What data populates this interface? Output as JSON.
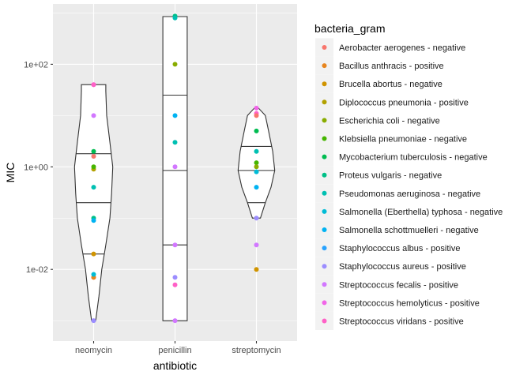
{
  "chart_data": {
    "type": "violin",
    "xlabel": "antibiotic",
    "ylabel": "MIC",
    "yscale": "log10",
    "ylim": [
      0.0004,
      1500
    ],
    "categories": [
      "neomycin",
      "penicillin",
      "streptomycin"
    ],
    "ytick_values": [
      0.01,
      1,
      100
    ],
    "ytick_labels": [
      "1e-02",
      "1e+00",
      "1e+02"
    ],
    "legend": {
      "title": "bacteria_gram",
      "position": "right",
      "entries": [
        {
          "label": "Aerobacter aerogenes - negative",
          "color": "#F8766D"
        },
        {
          "label": "Bacillus anthracis - positive",
          "color": "#E7851E"
        },
        {
          "label": "Brucella abortus - negative",
          "color": "#D09400"
        },
        {
          "label": "Diplococcus pneumonia - positive",
          "color": "#B2A100"
        },
        {
          "label": "Escherichia coli - negative",
          "color": "#89AC00"
        },
        {
          "label": "Klebsiella pneumoniae - negative",
          "color": "#45B500"
        },
        {
          "label": "Mycobacterium tuberculosis - negative",
          "color": "#00BC51"
        },
        {
          "label": "Proteus vulgaris - negative",
          "color": "#00C087"
        },
        {
          "label": "Pseudomonas aeruginosa - negative",
          "color": "#00C0B2"
        },
        {
          "label": "Salmonella (Eberthella) typhosa - negative",
          "color": "#00BCD6"
        },
        {
          "label": "Salmonella schottmuelleri - negative",
          "color": "#00B3F2"
        },
        {
          "label": "Staphylococcus albus - positive",
          "color": "#29A3FF"
        },
        {
          "label": "Staphylococcus aureus - positive",
          "color": "#9C8DFF"
        },
        {
          "label": "Streptococcus fecalis - positive",
          "color": "#D277FF"
        },
        {
          "label": "Streptococcus hemolyticus - positive",
          "color": "#F166E8"
        },
        {
          "label": "Streptococcus viridans - positive",
          "color": "#FF61C7"
        }
      ]
    },
    "violins": [
      {
        "category": "neomycin",
        "quantiles": [
          0.02,
          0.2,
          1.8
        ],
        "outline": [
          [
            0.001,
            0.05
          ],
          [
            0.003,
            0.13
          ],
          [
            0.01,
            0.2
          ],
          [
            0.03,
            0.3
          ],
          [
            0.1,
            0.4
          ],
          [
            0.3,
            0.44
          ],
          [
            1,
            0.47
          ],
          [
            3,
            0.4
          ],
          [
            10,
            0.32
          ],
          [
            30,
            0.3
          ],
          [
            40,
            0.3
          ]
        ]
      },
      {
        "category": "penicillin",
        "quantiles": [
          0.03,
          0.85,
          25
        ],
        "outline": [
          [
            0.001,
            0.3
          ],
          [
            0.01,
            0.3
          ],
          [
            0.1,
            0.3
          ],
          [
            1,
            0.3
          ],
          [
            10,
            0.3
          ],
          [
            100,
            0.3
          ],
          [
            850,
            0.3
          ]
        ]
      },
      {
        "category": "streptomycin",
        "quantiles": [
          0.2,
          0.85,
          2.5
        ],
        "outline": [
          [
            0.1,
            0.1
          ],
          [
            0.2,
            0.22
          ],
          [
            0.4,
            0.36
          ],
          [
            0.85,
            0.45
          ],
          [
            2,
            0.4
          ],
          [
            5,
            0.3
          ],
          [
            10,
            0.22
          ],
          [
            14,
            0.05
          ]
        ]
      }
    ],
    "points": [
      {
        "x": "neomycin",
        "y": 0.007,
        "color": "#F8766D"
      },
      {
        "x": "neomycin",
        "y": 1.6,
        "color": "#F8766D"
      },
      {
        "x": "neomycin",
        "y": 0.007,
        "color": "#E7851E"
      },
      {
        "x": "neomycin",
        "y": 0.02,
        "color": "#D09400"
      },
      {
        "x": "neomycin",
        "y": 0.9,
        "color": "#B2A100"
      },
      {
        "x": "neomycin",
        "y": 1.0,
        "color": "#45B500"
      },
      {
        "x": "neomycin",
        "y": 2.0,
        "color": "#00BC51"
      },
      {
        "x": "neomycin",
        "y": 0.1,
        "color": "#00C087"
      },
      {
        "x": "neomycin",
        "y": 0.4,
        "color": "#00C0B2"
      },
      {
        "x": "neomycin",
        "y": 0.008,
        "color": "#00BCD6"
      },
      {
        "x": "neomycin",
        "y": 0.09,
        "color": "#00B3F2"
      },
      {
        "x": "neomycin",
        "y": 0.001,
        "color": "#9C8DFF"
      },
      {
        "x": "neomycin",
        "y": 10,
        "color": "#D277FF"
      },
      {
        "x": "neomycin",
        "y": 40,
        "color": "#F166E8"
      },
      {
        "x": "neomycin",
        "y": 40,
        "color": "#FF61C7"
      },
      {
        "x": "penicillin",
        "y": 870,
        "color": "#00C087"
      },
      {
        "x": "penicillin",
        "y": 800,
        "color": "#00C0B2"
      },
      {
        "x": "penicillin",
        "y": 100,
        "color": "#89AC00"
      },
      {
        "x": "penicillin",
        "y": 10,
        "color": "#00B3F2"
      },
      {
        "x": "penicillin",
        "y": 3,
        "color": "#00C0B2"
      },
      {
        "x": "penicillin",
        "y": 1,
        "color": "#D277FF"
      },
      {
        "x": "penicillin",
        "y": 0.03,
        "color": "#D277FF"
      },
      {
        "x": "penicillin",
        "y": 0.007,
        "color": "#9C8DFF"
      },
      {
        "x": "penicillin",
        "y": 0.005,
        "color": "#FF61C7"
      },
      {
        "x": "penicillin",
        "y": 0.001,
        "color": "#D277FF"
      },
      {
        "x": "streptomycin",
        "y": 14,
        "color": "#F166E8"
      },
      {
        "x": "streptomycin",
        "y": 11,
        "color": "#FF61C7"
      },
      {
        "x": "streptomycin",
        "y": 10,
        "color": "#F8766D"
      },
      {
        "x": "streptomycin",
        "y": 5,
        "color": "#00BC51"
      },
      {
        "x": "streptomycin",
        "y": 2,
        "color": "#00C0B2"
      },
      {
        "x": "streptomycin",
        "y": 1.2,
        "color": "#45B500"
      },
      {
        "x": "streptomycin",
        "y": 1.0,
        "color": "#89AC00"
      },
      {
        "x": "streptomycin",
        "y": 0.8,
        "color": "#00BCD6"
      },
      {
        "x": "streptomycin",
        "y": 0.4,
        "color": "#00B3F2"
      },
      {
        "x": "streptomycin",
        "y": 0.1,
        "color": "#9C8DFF"
      },
      {
        "x": "streptomycin",
        "y": 0.03,
        "color": "#D277FF"
      },
      {
        "x": "streptomycin",
        "y": 0.01,
        "color": "#D09400"
      }
    ]
  }
}
